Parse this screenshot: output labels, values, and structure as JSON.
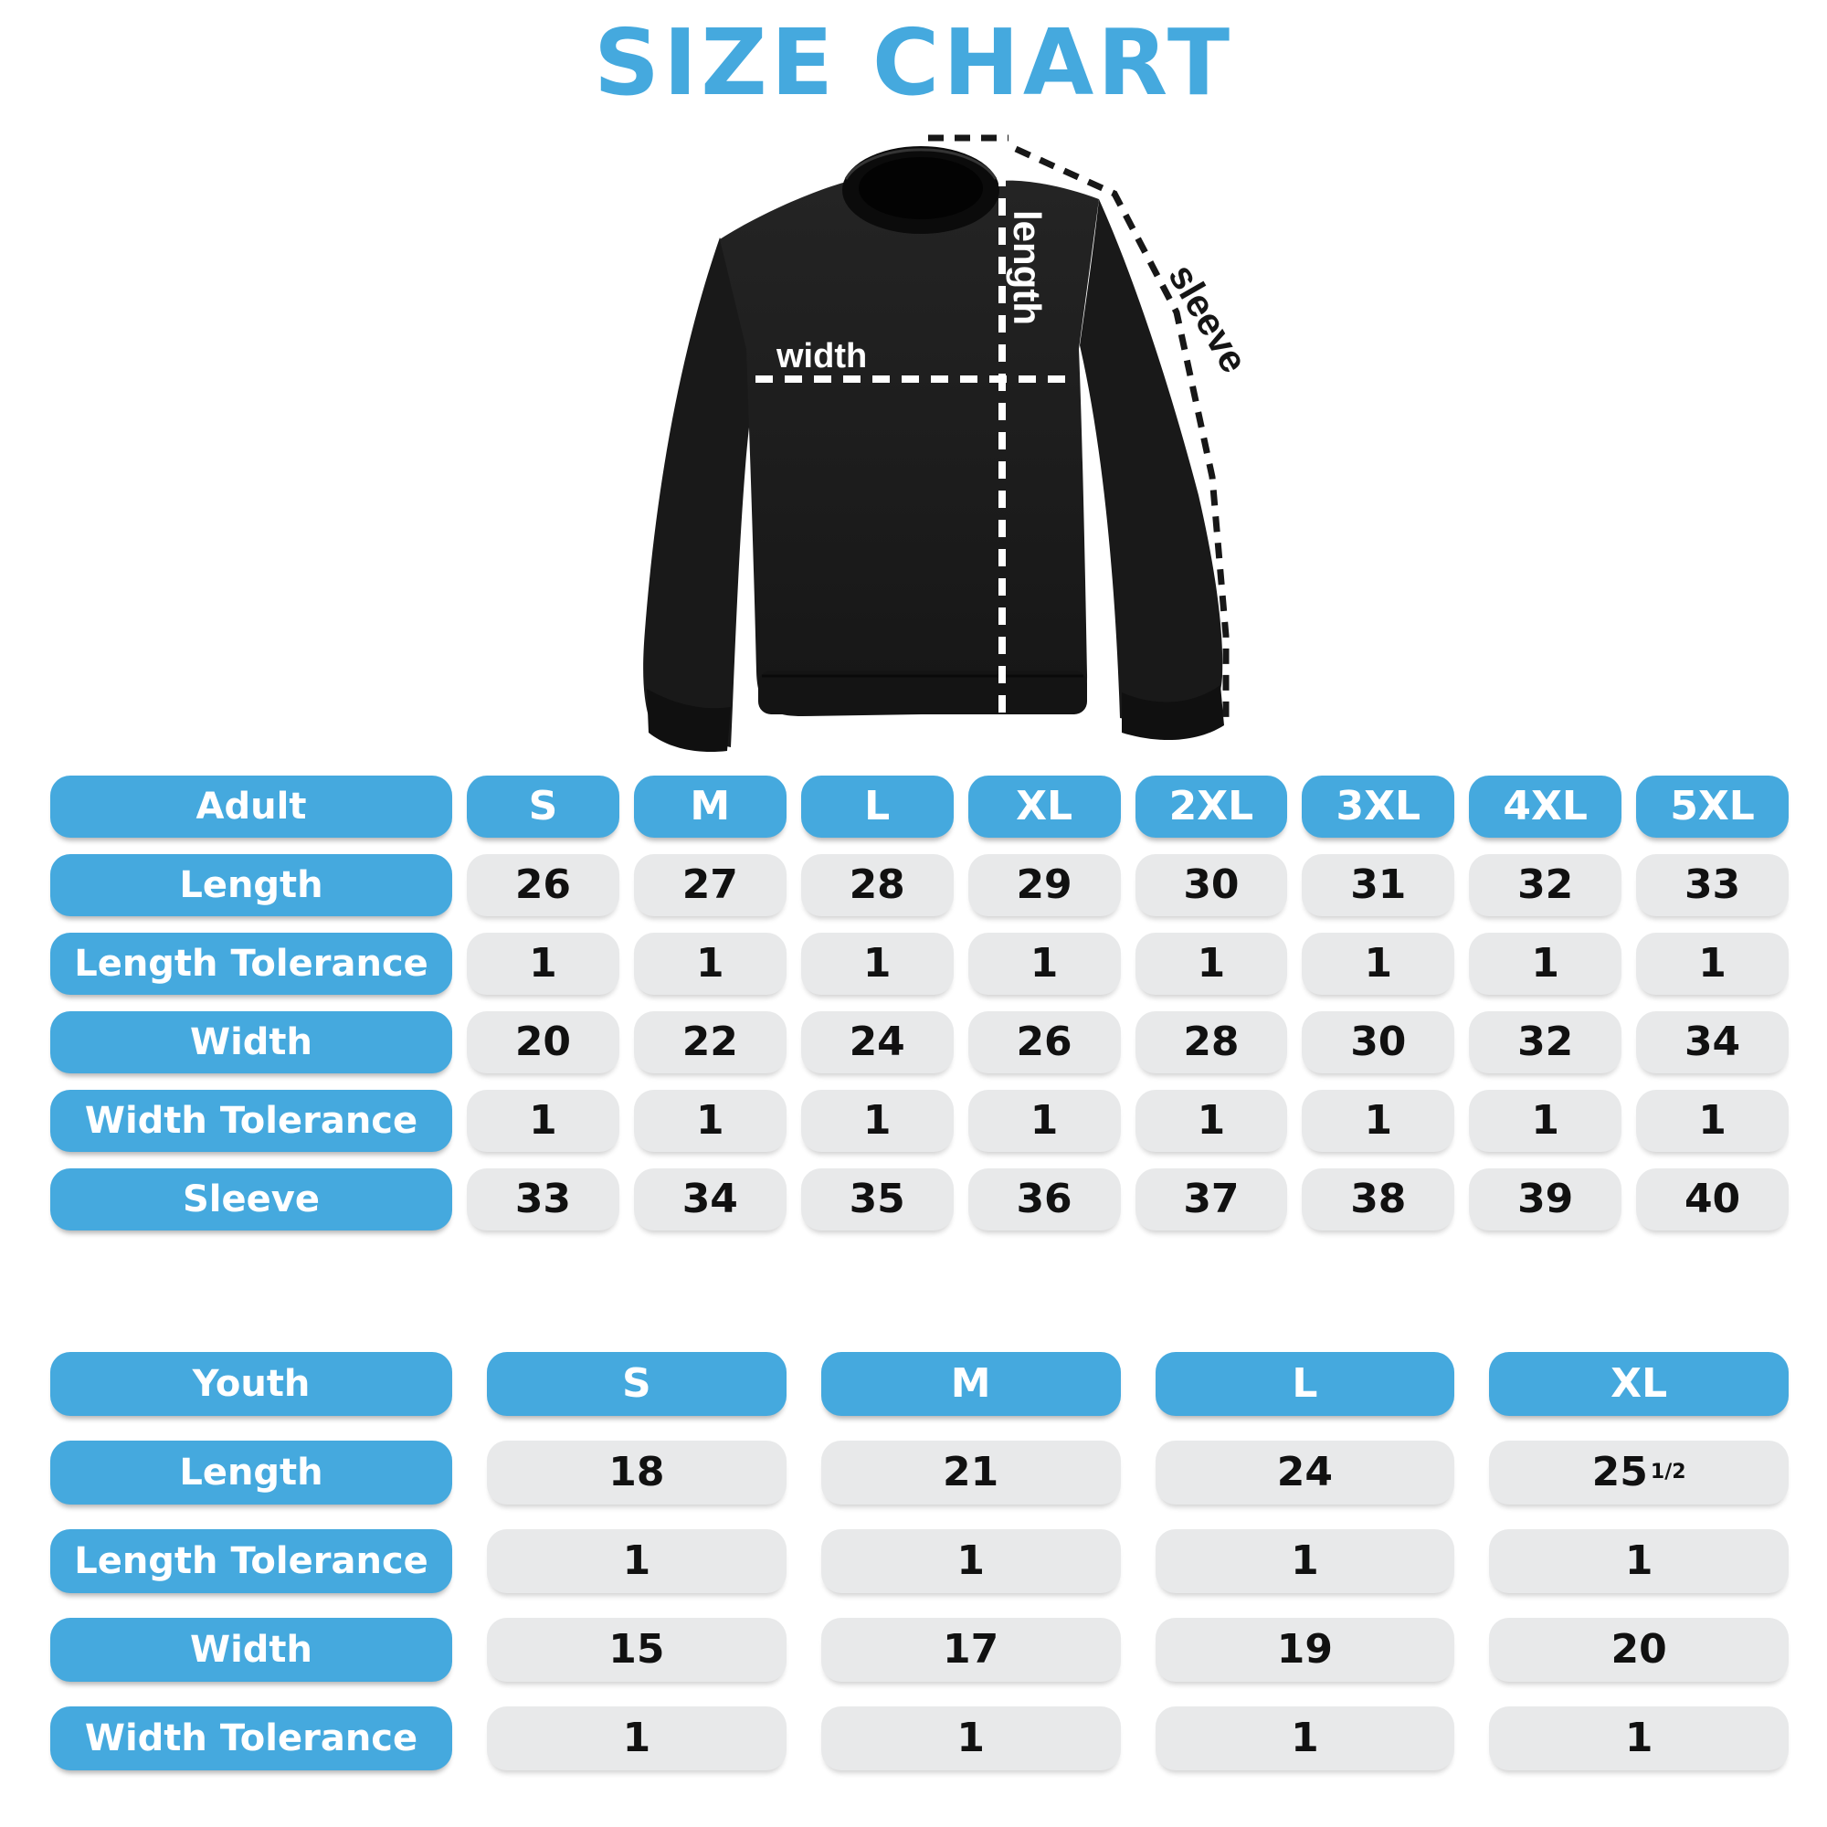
{
  "title": "SIZE CHART",
  "colors": {
    "accent": "#45A9DE",
    "cell_bg": "#E8E9EA",
    "value_text": "#111111",
    "label_text": "#FFFFFF",
    "garment_black": "#1B1B1B"
  },
  "garment": {
    "labels": {
      "length": "length",
      "width": "width",
      "sleeve": "sleeve"
    }
  },
  "adult_table": {
    "header": {
      "label": "Adult",
      "sizes": [
        "S",
        "M",
        "L",
        "XL",
        "2XL",
        "3XL",
        "4XL",
        "5XL"
      ]
    },
    "rows": [
      {
        "label": "Length",
        "values": [
          "26",
          "27",
          "28",
          "29",
          "30",
          "31",
          "32",
          "33"
        ]
      },
      {
        "label": "Length Tolerance",
        "values": [
          "1",
          "1",
          "1",
          "1",
          "1",
          "1",
          "1",
          "1"
        ]
      },
      {
        "label": "Width",
        "values": [
          "20",
          "22",
          "24",
          "26",
          "28",
          "30",
          "32",
          "34"
        ]
      },
      {
        "label": "Width Tolerance",
        "values": [
          "1",
          "1",
          "1",
          "1",
          "1",
          "1",
          "1",
          "1"
        ]
      },
      {
        "label": "Sleeve",
        "values": [
          "33",
          "34",
          "35",
          "36",
          "37",
          "38",
          "39",
          "40"
        ]
      }
    ]
  },
  "youth_table": {
    "header": {
      "label": "Youth",
      "sizes": [
        "S",
        "M",
        "L",
        "XL"
      ]
    },
    "rows": [
      {
        "label": "Length",
        "values": [
          "18",
          "21",
          "24",
          "25 1/2"
        ]
      },
      {
        "label": "Length Tolerance",
        "values": [
          "1",
          "1",
          "1",
          "1"
        ]
      },
      {
        "label": "Width",
        "values": [
          "15",
          "17",
          "19",
          "20"
        ]
      },
      {
        "label": "Width Tolerance",
        "values": [
          "1",
          "1",
          "1",
          "1"
        ]
      }
    ]
  },
  "chart_data": [
    {
      "type": "table",
      "title": "Adult",
      "columns": [
        "Adult",
        "S",
        "M",
        "L",
        "XL",
        "2XL",
        "3XL",
        "4XL",
        "5XL"
      ],
      "rows": [
        [
          "Length",
          26,
          27,
          28,
          29,
          30,
          31,
          32,
          33
        ],
        [
          "Length Tolerance",
          1,
          1,
          1,
          1,
          1,
          1,
          1,
          1
        ],
        [
          "Width",
          20,
          22,
          24,
          26,
          28,
          30,
          32,
          34
        ],
        [
          "Width Tolerance",
          1,
          1,
          1,
          1,
          1,
          1,
          1,
          1
        ],
        [
          "Sleeve",
          33,
          34,
          35,
          36,
          37,
          38,
          39,
          40
        ]
      ]
    },
    {
      "type": "table",
      "title": "Youth",
      "columns": [
        "Youth",
        "S",
        "M",
        "L",
        "XL"
      ],
      "rows": [
        [
          "Length",
          18,
          21,
          24,
          "25 1/2"
        ],
        [
          "Length Tolerance",
          1,
          1,
          1,
          1
        ],
        [
          "Width",
          15,
          17,
          19,
          20
        ],
        [
          "Width Tolerance",
          1,
          1,
          1,
          1
        ]
      ]
    }
  ]
}
